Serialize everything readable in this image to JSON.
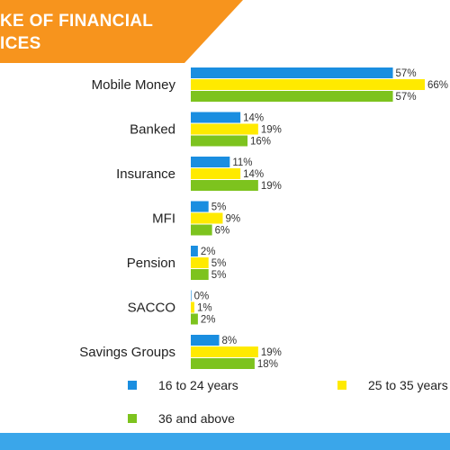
{
  "title": {
    "line1": "KE OF FINANCIAL",
    "line2": "ICES",
    "banner_color": "#f7941d"
  },
  "colors": {
    "bottom_stripe": "#3aa6ea"
  },
  "chart_data": {
    "type": "bar",
    "orientation": "horizontal",
    "categories": [
      "Mobile Money",
      "Banked",
      "Insurance",
      "MFI",
      "Pension",
      "SACCO",
      "Savings Groups"
    ],
    "series": [
      {
        "name": "16 to 24 years",
        "color": "#1a8ee0",
        "values": [
          57,
          14,
          11,
          5,
          2,
          0,
          8
        ]
      },
      {
        "name": "25 to 35 years",
        "color": "#ffea00",
        "values": [
          66,
          19,
          14,
          9,
          5,
          1,
          19
        ]
      },
      {
        "name": "36 and above",
        "color": "#7dc31e",
        "values": [
          57,
          16,
          19,
          6,
          5,
          2,
          18
        ]
      }
    ],
    "value_suffix": "%",
    "xlim": [
      0,
      70
    ],
    "grid": false,
    "legend_position": "bottom"
  }
}
